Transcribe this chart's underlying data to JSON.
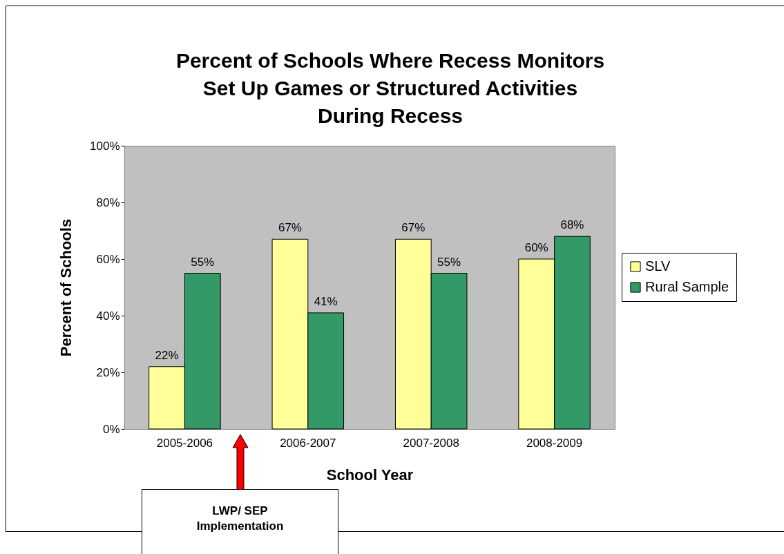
{
  "chart_data": {
    "type": "bar",
    "title": "Percent of Schools Where Recess Monitors\nSet Up Games or Structured Activities\nDuring Recess",
    "xlabel": "School Year",
    "ylabel": "Percent of Schools",
    "categories": [
      "2005-2006",
      "2006-2007",
      "2007-2008",
      "2008-2009"
    ],
    "series": [
      {
        "name": "SLV",
        "color": "#ffff99",
        "values": [
          22,
          67,
          67,
          60
        ],
        "value_labels": [
          "22%",
          "67%",
          "67%",
          "60%"
        ]
      },
      {
        "name": "Rural Sample",
        "color": "#339966",
        "values": [
          55,
          41,
          55,
          68
        ],
        "value_labels": [
          "55%",
          "41%",
          "55%",
          "68%"
        ]
      }
    ],
    "ylim": [
      0,
      100
    ],
    "yticks": [
      {
        "value": 0,
        "label": "0%"
      },
      {
        "value": 20,
        "label": "20%"
      },
      {
        "value": 40,
        "label": "40%"
      },
      {
        "value": 60,
        "label": "60%"
      },
      {
        "value": 80,
        "label": "80%"
      },
      {
        "value": 100,
        "label": "100%"
      }
    ],
    "grid": false,
    "legend": "right",
    "annotations": [
      "LWP/ SEP Implementation"
    ]
  }
}
